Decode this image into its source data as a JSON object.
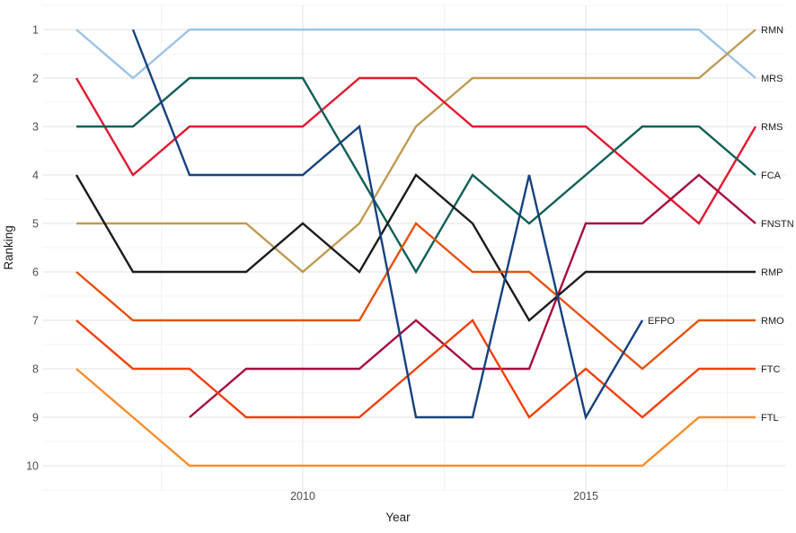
{
  "page": {
    "background": "#ffffff"
  },
  "chart_data": {
    "type": "line",
    "subtype": "bump-rank-chart",
    "title": "",
    "xlabel": "Year",
    "ylabel": "Ranking",
    "x": [
      2006,
      2007,
      2008,
      2009,
      2010,
      2011,
      2012,
      2013,
      2014,
      2015,
      2016,
      2017,
      2018
    ],
    "x_tick_years": [
      2010,
      2015
    ],
    "x_tick_labels": [
      "2010",
      "2015"
    ],
    "x_minor_gridline_years": [
      2007.5,
      2012.5,
      2017.5
    ],
    "y_ticks": [
      1,
      2,
      3,
      4,
      5,
      6,
      7,
      8,
      9,
      10
    ],
    "ylim": [
      1,
      10
    ],
    "y_axis_reversed": true,
    "grid": {
      "on": true,
      "major_color": "#e0e0e0",
      "minor_color": "#f0f0f0"
    },
    "legend_position": "line-end-labels-right",
    "axis_text_color": "#4d4d4d",
    "label_text_color": "#212121",
    "series": [
      {
        "name": "MRS",
        "color": "#9DC3E6",
        "values": [
          1,
          2,
          1,
          1,
          1,
          1,
          1,
          1,
          1,
          1,
          1,
          1,
          2
        ]
      },
      {
        "name": "RMN",
        "color": "#BF9B55",
        "values": [
          5,
          5,
          5,
          5,
          6,
          5,
          3,
          2,
          2,
          2,
          2,
          2,
          1
        ]
      },
      {
        "name": "RMS",
        "color": "#E11931",
        "values": [
          2,
          4,
          3,
          3,
          3,
          2,
          2,
          3,
          3,
          3,
          4,
          5,
          3
        ]
      },
      {
        "name": "FCA",
        "color": "#0F5F56",
        "values": [
          3,
          3,
          2,
          2,
          2,
          4,
          6,
          4,
          5,
          4,
          3,
          3,
          4
        ]
      },
      {
        "name": "FNSTN",
        "color": "#A50D3F",
        "values": [
          null,
          null,
          9,
          8,
          8,
          8,
          7,
          8,
          8,
          5,
          5,
          4,
          5
        ]
      },
      {
        "name": "RMP",
        "color": "#1B1B1B",
        "values": [
          4,
          6,
          6,
          6,
          5,
          6,
          4,
          5,
          7,
          6,
          6,
          6,
          6
        ]
      },
      {
        "name": "RMO",
        "color": "#E55211",
        "values": [
          6,
          7,
          7,
          7,
          7,
          7,
          5,
          6,
          6,
          7,
          8,
          7,
          7
        ]
      },
      {
        "name": "FTC",
        "color": "#F2400D",
        "values": [
          7,
          8,
          8,
          9,
          9,
          9,
          8,
          7,
          9,
          8,
          9,
          8,
          8
        ]
      },
      {
        "name": "FTL",
        "color": "#F68D2E",
        "values": [
          8,
          9,
          10,
          10,
          10,
          10,
          10,
          10,
          10,
          10,
          10,
          9,
          9
        ]
      },
      {
        "name": "EFPO",
        "color": "#16417F",
        "values": [
          null,
          1,
          4,
          4,
          4,
          3,
          9,
          9,
          4,
          9,
          7,
          null,
          null
        ]
      }
    ]
  }
}
